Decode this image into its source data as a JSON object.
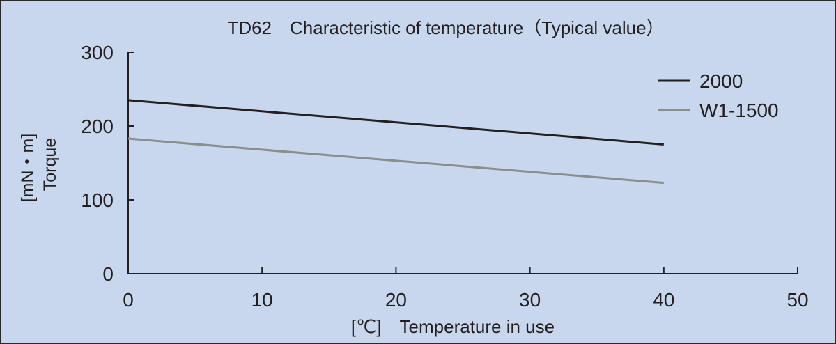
{
  "chart_data": {
    "type": "line",
    "title": "TD62　Characteristic of temperature（Typical value）",
    "xlabel": "[℃]　Temperature in use",
    "ylabel_unit": "[mN・m]",
    "ylabel": "Torque",
    "xlim": [
      0,
      50
    ],
    "ylim": [
      0,
      300
    ],
    "x_ticks": [
      0,
      10,
      20,
      30,
      40,
      50
    ],
    "y_ticks": [
      0,
      100,
      200,
      300
    ],
    "grid": false,
    "legend_position": "top-right",
    "series": [
      {
        "name": "2000",
        "color": "#231f20",
        "x": [
          0,
          40
        ],
        "y": [
          235,
          175
        ]
      },
      {
        "name": "W1-1500",
        "color": "#8c8c8c",
        "x": [
          0,
          40
        ],
        "y": [
          183,
          123
        ]
      }
    ]
  },
  "colors": {
    "background": "#c8d7ee",
    "border": "#2a2a2a",
    "axis": "#231f20"
  }
}
